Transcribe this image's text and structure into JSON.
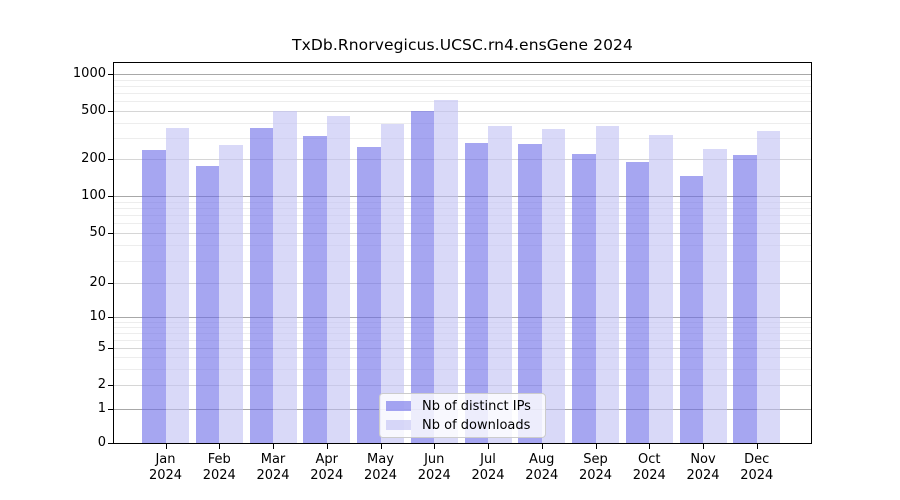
{
  "chart_data": {
    "type": "bar",
    "title": "TxDb.Rnorvegicus.UCSC.rn4.ensGene 2024",
    "categories": [
      "Jan",
      "Feb",
      "Mar",
      "Apr",
      "May",
      "Jun",
      "Jul",
      "Aug",
      "Sep",
      "Oct",
      "Nov",
      "Dec"
    ],
    "x_year": "2024",
    "series": [
      {
        "name": "Nb of distinct IPs",
        "color": "#6b6be8",
        "values": [
          236,
          177,
          362,
          312,
          251,
          505,
          272,
          267,
          222,
          190,
          146,
          216
        ]
      },
      {
        "name": "Nb of downloads",
        "color": "#c0c0f3",
        "values": [
          360,
          263,
          500,
          455,
          391,
          612,
          377,
          355,
          377,
          317,
          240,
          344
        ]
      }
    ],
    "yscale": "pseudo-log",
    "y_ticks": [
      0,
      1,
      2,
      5,
      10,
      20,
      50,
      100,
      200,
      500,
      1000
    ],
    "y_tick_labels": [
      "0",
      "1",
      "2",
      "5",
      "10",
      "20",
      "50",
      "100",
      "200",
      "500",
      "1000"
    ],
    "ylim": [
      0,
      1300
    ],
    "grid": "horizontal major and minor gridlines",
    "legend_position": "inside plot, lower center",
    "bar_alpha": 0.6,
    "background_color": "#ffffff"
  }
}
